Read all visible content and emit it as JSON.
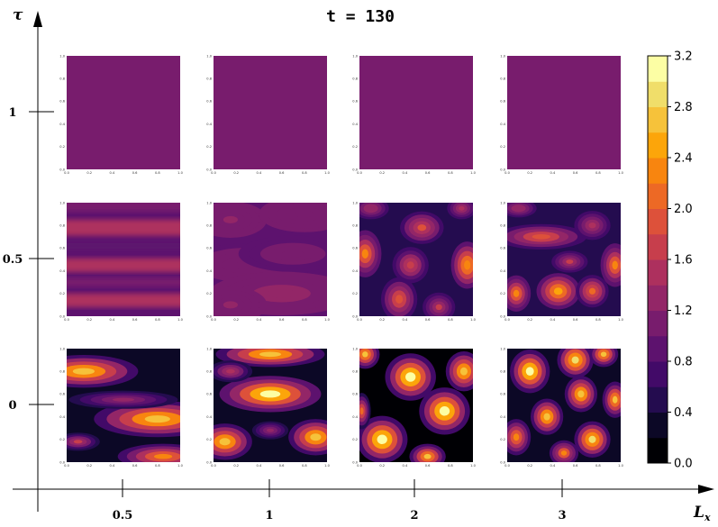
{
  "chart_data": {
    "type": "heatmap",
    "title": "t = 130",
    "xlabel": "L",
    "xlabel_sub": "x",
    "ylabel": "τ",
    "x_ticks": [
      "0.5",
      "1",
      "2",
      "3"
    ],
    "y_ticks": [
      "1",
      "0.5",
      "0"
    ],
    "panel_axis_ticks": [
      "0.0",
      "0.2",
      "0.4",
      "0.6",
      "0.8",
      "1.0"
    ],
    "grid": false,
    "colorbar": {
      "min": 0.0,
      "max": 3.2,
      "ticks": [
        "0.0",
        "0.4",
        "0.8",
        "1.2",
        "1.6",
        "2.0",
        "2.4",
        "2.8",
        "3.2"
      ],
      "levels": 16,
      "colormap": "inferno",
      "colors": [
        "#000004",
        "#0c0826",
        "#240c4f",
        "#420a68",
        "#5d126e",
        "#781c6d",
        "#932667",
        "#ad305e",
        "#c73e4c",
        "#dd513a",
        "#ed6925",
        "#f8850f",
        "#fca50a",
        "#f6c23a",
        "#f0de6a",
        "#fcfea4"
      ]
    },
    "panels": [
      {
        "tau": "1",
        "Lx": "0.5",
        "pattern": "uniform",
        "level": 1.0
      },
      {
        "tau": "1",
        "Lx": "1",
        "pattern": "uniform",
        "level": 1.0
      },
      {
        "tau": "1",
        "Lx": "2",
        "pattern": "uniform",
        "level": 1.0
      },
      {
        "tau": "1",
        "Lx": "3",
        "pattern": "uniform",
        "level": 1.0
      },
      {
        "tau": "0.5",
        "Lx": "0.5",
        "pattern": "horizontal stripes",
        "min": 0.8,
        "max": 1.6
      },
      {
        "tau": "0.5",
        "Lx": "1",
        "pattern": "weak stripes",
        "min": 0.85,
        "max": 1.4
      },
      {
        "tau": "0.5",
        "Lx": "2",
        "pattern": "spots",
        "min": 0.4,
        "max": 2.6
      },
      {
        "tau": "0.5",
        "Lx": "3",
        "pattern": "spots",
        "min": 0.3,
        "max": 2.6
      },
      {
        "tau": "0",
        "Lx": "0.5",
        "pattern": "elongated spots",
        "min": 0.1,
        "max": 2.9
      },
      {
        "tau": "0",
        "Lx": "1",
        "pattern": "elongated spots",
        "min": 0.1,
        "max": 3.0
      },
      {
        "tau": "0",
        "Lx": "2",
        "pattern": "spots",
        "min": 0.1,
        "max": 3.1
      },
      {
        "tau": "0",
        "Lx": "3",
        "pattern": "spots",
        "min": 0.1,
        "max": 3.1
      }
    ]
  }
}
